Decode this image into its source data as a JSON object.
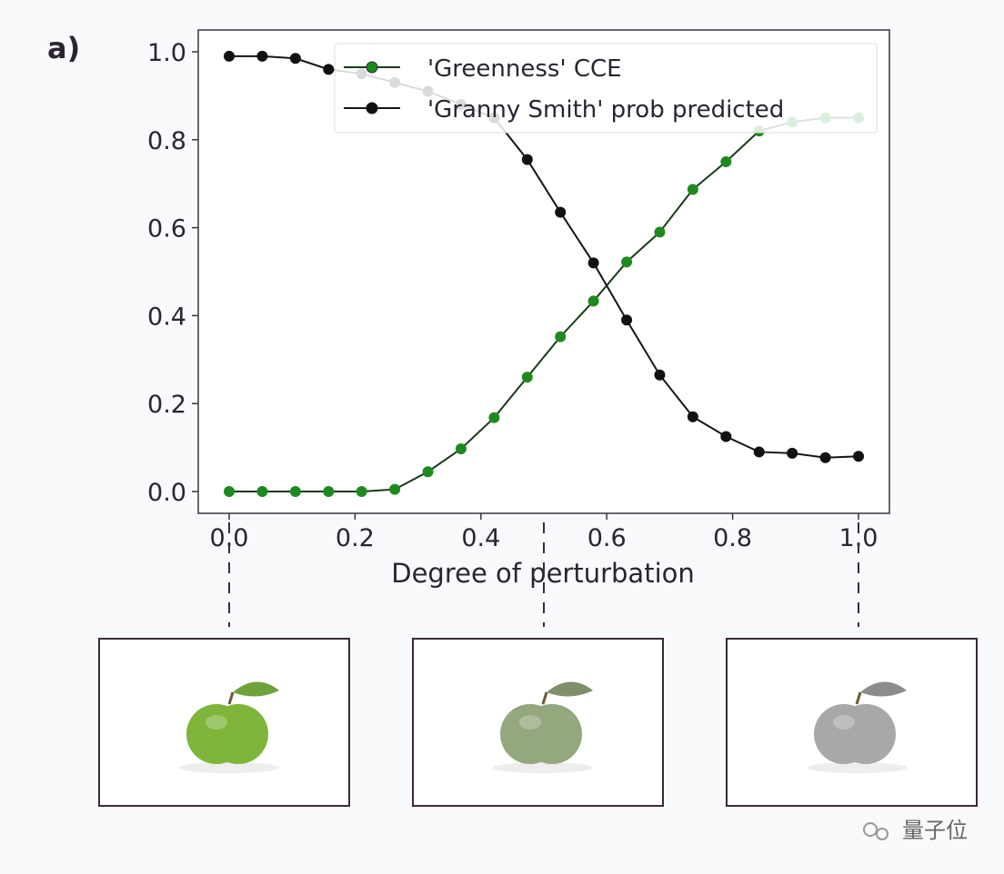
{
  "panel_label": "a)",
  "chart_data": {
    "type": "line",
    "xlabel": "Degree of perturbation",
    "ylabel": "",
    "xlim": [
      -0.05,
      1.05
    ],
    "ylim": [
      -0.05,
      1.05
    ],
    "xticks": [
      "0.0",
      "0.2",
      "0.4",
      "0.6",
      "0.8",
      "1.0"
    ],
    "yticks": [
      "0.0",
      "0.2",
      "0.4",
      "0.6",
      "0.8",
      "1.0"
    ],
    "grid": false,
    "legend_position": "top-right",
    "x": [
      0,
      0.0526,
      0.1053,
      0.1579,
      0.2105,
      0.2632,
      0.3158,
      0.3684,
      0.4211,
      0.4737,
      0.5263,
      0.5789,
      0.6316,
      0.6842,
      0.7368,
      0.7895,
      0.8421,
      0.8947,
      0.9474,
      1.0
    ],
    "series": [
      {
        "name": "'Greenness' CCE",
        "color": "#1e8a1e",
        "values": [
          0,
          0,
          0,
          0,
          0,
          0.005,
          0.045,
          0.097,
          0.168,
          0.26,
          0.352,
          0.433,
          0.522,
          0.59,
          0.687,
          0.75,
          0.82,
          0.84,
          0.85,
          0.85
        ]
      },
      {
        "name": "'Granny Smith' prob predicted",
        "color": "#111111",
        "values": [
          0.99,
          0.99,
          0.985,
          0.96,
          0.95,
          0.93,
          0.91,
          0.88,
          0.85,
          0.755,
          0.635,
          0.52,
          0.39,
          0.265,
          0.17,
          0.125,
          0.09,
          0.087,
          0.077,
          0.08
        ]
      }
    ]
  },
  "images": [
    {
      "x_value": 0.0,
      "apple_color": "#7fb53a"
    },
    {
      "x_value": 0.5,
      "apple_color": "#94a77e"
    },
    {
      "x_value": 1.0,
      "apple_color": "#a8a8a8"
    }
  ],
  "watermark": "量子位"
}
